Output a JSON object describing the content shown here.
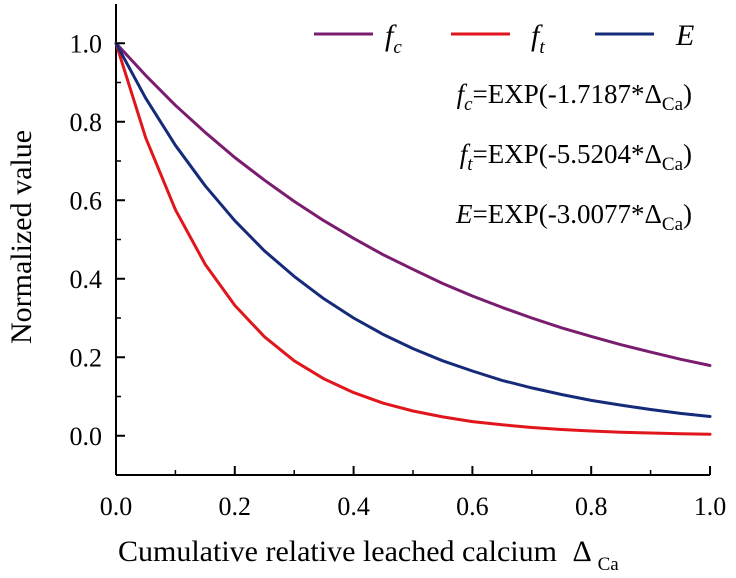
{
  "chart_data": {
    "type": "line",
    "xlabel": "Cumulative relative leached calcium",
    "xlabel_symbol": "Δ",
    "xlabel_subscript": "Ca",
    "ylabel": "Normalized value",
    "xlim": [
      0.0,
      1.0
    ],
    "ylim": [
      -0.1,
      1.1
    ],
    "x_ticks": [
      0.0,
      0.2,
      0.4,
      0.6,
      0.8,
      1.0
    ],
    "x_tick_labels": [
      "0.0",
      "0.2",
      "0.4",
      "0.6",
      "0.8",
      "1.0"
    ],
    "y_ticks": [
      0.0,
      0.2,
      0.4,
      0.6,
      0.8,
      1.0
    ],
    "y_tick_labels": [
      "0.0",
      "0.2",
      "0.4",
      "0.6",
      "0.8",
      "1.0"
    ],
    "grid": false,
    "legend_position": "top-right",
    "x": [
      0.0,
      0.05,
      0.1,
      0.15,
      0.2,
      0.25,
      0.3,
      0.35,
      0.4,
      0.45,
      0.5,
      0.55,
      0.6,
      0.65,
      0.7,
      0.75,
      0.8,
      0.85,
      0.9,
      0.95,
      1.0
    ],
    "series": [
      {
        "key": "fc",
        "name": "f",
        "subscript": "c",
        "color": "#7b1d6f",
        "coefficient": 1.7187,
        "values": [
          1.0,
          0.918,
          0.842,
          0.773,
          0.709,
          0.651,
          0.597,
          0.548,
          0.503,
          0.461,
          0.424,
          0.388,
          0.356,
          0.327,
          0.3,
          0.275,
          0.253,
          0.232,
          0.213,
          0.195,
          0.179
        ]
      },
      {
        "key": "ft",
        "name": "f",
        "subscript": "t",
        "color": "#e0161c",
        "coefficient": 5.5204,
        "values": [
          1.0,
          0.759,
          0.576,
          0.437,
          0.332,
          0.252,
          0.191,
          0.145,
          0.11,
          0.083,
          0.063,
          0.048,
          0.036,
          0.028,
          0.021,
          0.016,
          0.012,
          0.009,
          0.007,
          0.005,
          0.004
        ]
      },
      {
        "key": "E",
        "name": "E",
        "subscript": "",
        "color": "#152b7a",
        "coefficient": 3.0077,
        "values": [
          1.0,
          0.86,
          0.74,
          0.637,
          0.548,
          0.471,
          0.406,
          0.349,
          0.3,
          0.258,
          0.222,
          0.191,
          0.165,
          0.141,
          0.122,
          0.105,
          0.09,
          0.078,
          0.067,
          0.057,
          0.049
        ]
      }
    ],
    "equations": [
      {
        "var": "f",
        "sub": "c",
        "expr": "=EXP(-1.7187*",
        "delta": "Δ",
        "delta_sub": "Ca",
        "close": ")"
      },
      {
        "var": "f",
        "sub": "t",
        "expr": "=EXP(-5.5204*",
        "delta": "Δ",
        "delta_sub": "Ca",
        "close": ")"
      },
      {
        "var": "E",
        "sub": "",
        "expr": "=EXP(-3.0077*",
        "delta": "Δ",
        "delta_sub": "Ca",
        "close": ")"
      }
    ]
  }
}
